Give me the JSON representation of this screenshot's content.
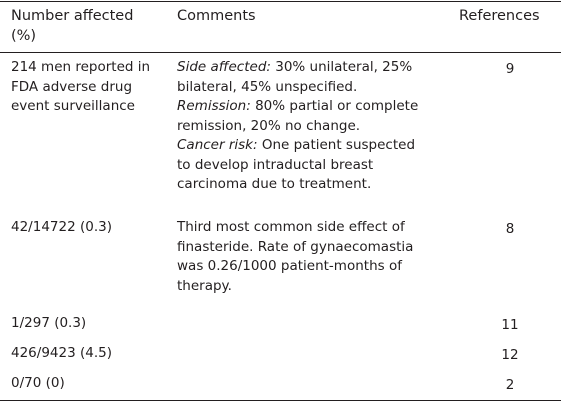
{
  "table": {
    "headers": {
      "number_affected": [
        "Number affected",
        "(%)"
      ],
      "comments": "Comments",
      "references": "References"
    },
    "rows": [
      {
        "number_affected": [
          "214 men reported in",
          "FDA adverse drug",
          "event surveillance"
        ],
        "comments": {
          "side_label": "Side affected:",
          "side_text_1": " 30% unilateral, 25%",
          "side_text_2": "bilateral, 45% unspecified.",
          "remission_label": "Remission:",
          "remission_text_1": " 80% partial or complete",
          "remission_text_2": "remission, 20% no change.",
          "cancer_label": "Cancer risk:",
          "cancer_text_1": " One patient suspected",
          "cancer_text_2": "to develop intraductal breast",
          "cancer_text_3": "carcinoma due to treatment."
        },
        "reference": "9"
      },
      {
        "number_affected": [
          "42/14722 (0.3)"
        ],
        "comments_lines": [
          "Third most common side effect of",
          "finasteride. Rate of gynaecomastia",
          "was 0.26/1000 patient-months of",
          "therapy."
        ],
        "reference": "8"
      },
      {
        "number_affected": [
          "1/297 (0.3)"
        ],
        "reference": "11"
      },
      {
        "number_affected": [
          "426/9423 (4.5)"
        ],
        "reference": "12"
      },
      {
        "number_affected": [
          "0/70 (0)"
        ],
        "reference": "2"
      }
    ]
  }
}
